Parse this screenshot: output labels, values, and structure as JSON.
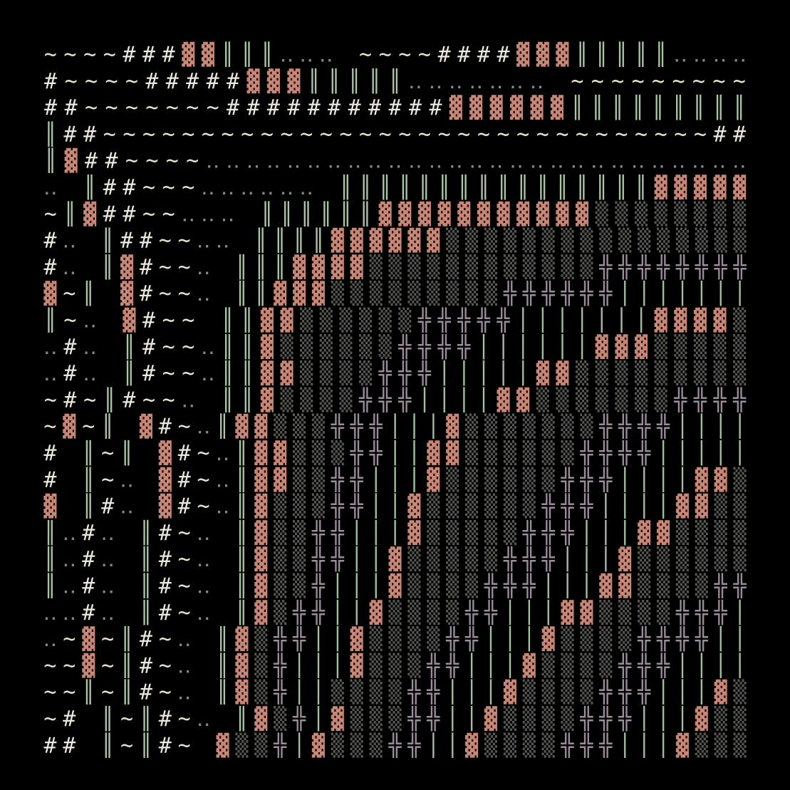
{
  "grid": {
    "rows": [
      "~~~~###▓▓║║║‥‥‥ ~~~~####▓▓▓║║║║║‥‥‥‥",
      "#~~~~#####▓▓▓║║║║║‥‥‥‥‥‥‥ ~~~~~~~~~",
      "##~~~~~~~###########▓▓▓▓▓▓║║║║║║║║║",
      "║##~~~~~~~~~~~~~~~~~~~~~~~~~~~~~~~##",
      "║▓##~~~~‥‥‥‥‥‥‥‥‥‥‥‥‥‥‥‥‥‥‥‥‥‥‥‥‥‥‥",
      "‥ ║##~~~‥‥‥‥‥‥ ║║║║║║║║║║║║║║║║▓▓▓▓▓",
      "~║▓##~~‥‥‥ ║║║║║║▓▓▓▓▓▓▓▓▓▓▓▒▒▒▒▒▒▒▒",
      "#‥ ║##~~‥‥ ║║║║▓▓▓▓▓▓▒▒▒▒▒▒▒▒▒▒▒▒▒▒▒▒",
      "#‥ ║▓#~~‥ ║║║▓▓▓▓▒▒▒▒▒▒▒▒▒▒▒▒╬╬╬╬╬╬╬╬",
      "▓~║ ▓#~~‥ ║║▓▓▓▒▒▒▒▒▒▒▒▒╬╬╬╬╬╬│││││││",
      "║~‥ ▓#~~ ║║▓▓▒▒▒▒▒▒╬╬╬╬╬│││││││▓▓▓▓▒",
      "‥#‥ ║#~~‥║║▓▒▒▒▒▒▒╬╬╬╬││││││▓▓▓▒▒▒▒▒",
      "‥#‥ ║#~~‥║║▓▓▒▒▒▒╬╬╬│││││▓▓▒▒▒▒▒▒▒▒▒",
      "~#~║#~~‥ ║║▓▒▒▒▒╬╬╬││││▓▓▒▒▒▒▒▒▒╬╬╬╬",
      "~▓~║ ▓#~‥║▓▓▒▒▒╬╬╬│││▓▒▒▒▒▒▒▒╬╬╬╬││││",
      "# ║~║ ▓#~‥║▓▓▒▒▒╬╬││▓▓▒▒▒▒▒▒╬╬╬╬│││││",
      "# ║~‥ ▓#~‥║▓▓▒▒╬╬│││▓▒▒▒▒▒▒╬╬╬││││▓▓▒",
      "▓ ║#‥ ▓#~‥║▓▒▒▒╬╬││▓▒▒▒▒▒▒╬╬╬││││▓▓▒▒",
      "║‥#‥ ║#~‥ ║▓▒▒╬╬│││▓▒▒▒▒▒╬╬╬│││▓▓▒▒▒▒",
      "║‥#‥ ║#~‥ ║▓▒▒╬╬││▓▒▒▒▒▒╬╬╬│││▓▒▒▒▒▒▒",
      "║‥#‥ ║#~‥ ║▓▒▒╬│││▓▒▒▒▒╬╬╬│││▓▓▒▒▒▒╬╬",
      "‥‥#‥ ║#~‥ ║▓▒╬╬││▓▒▒▒▒╬╬│││▓▓▒▒▒▒╬╬╬│",
      "‥~▓~║#~‥ ║▓▒╬╬││▓▒▒▒▒╬╬│││▓▒▒▒▒╬╬╬╬││",
      "~~▓~║#~‥ ║▓▒╬│││▓▒▒▒╬╬│││▓▒▒▒▒╬╬╬││││",
      "~~║~║#~‥ ║▓▒╬││▒▒▒▒╬╬│││▓▒▒▒▒╬╬╬│││▓▒",
      "~# ║~║#~‥ ║▓▒╬│▓▒▒▒╬╬││▓▒▒▒▒╬╬╬│││▓▒▒",
      "## ║~║#~ ▓▒▒╬│▓▒▒▒╬╬││▓▒▒▒▒╬╬╬│││▓▒▒▒"
    ]
  }
}
